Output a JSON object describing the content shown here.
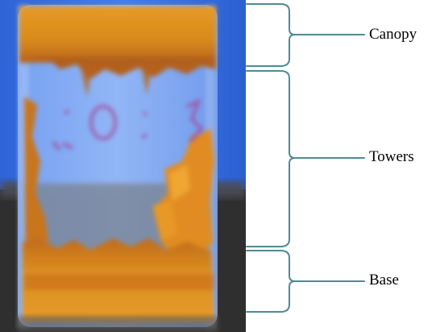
{
  "labels": {
    "canopy": "Canopy",
    "towers": "Towers",
    "base": "Base"
  },
  "colors": {
    "bracket": "#4f8a96",
    "background_blue": "#3a6fe0",
    "bench_dark": "#2f2f30",
    "sediment_orange": "#d98a1c",
    "sediment_brown": "#a8561a",
    "marker_purple": "#a14d9e"
  },
  "photo": {
    "subject": "glass-jar-with-orange-sediment",
    "markings": "written marker on jar"
  }
}
